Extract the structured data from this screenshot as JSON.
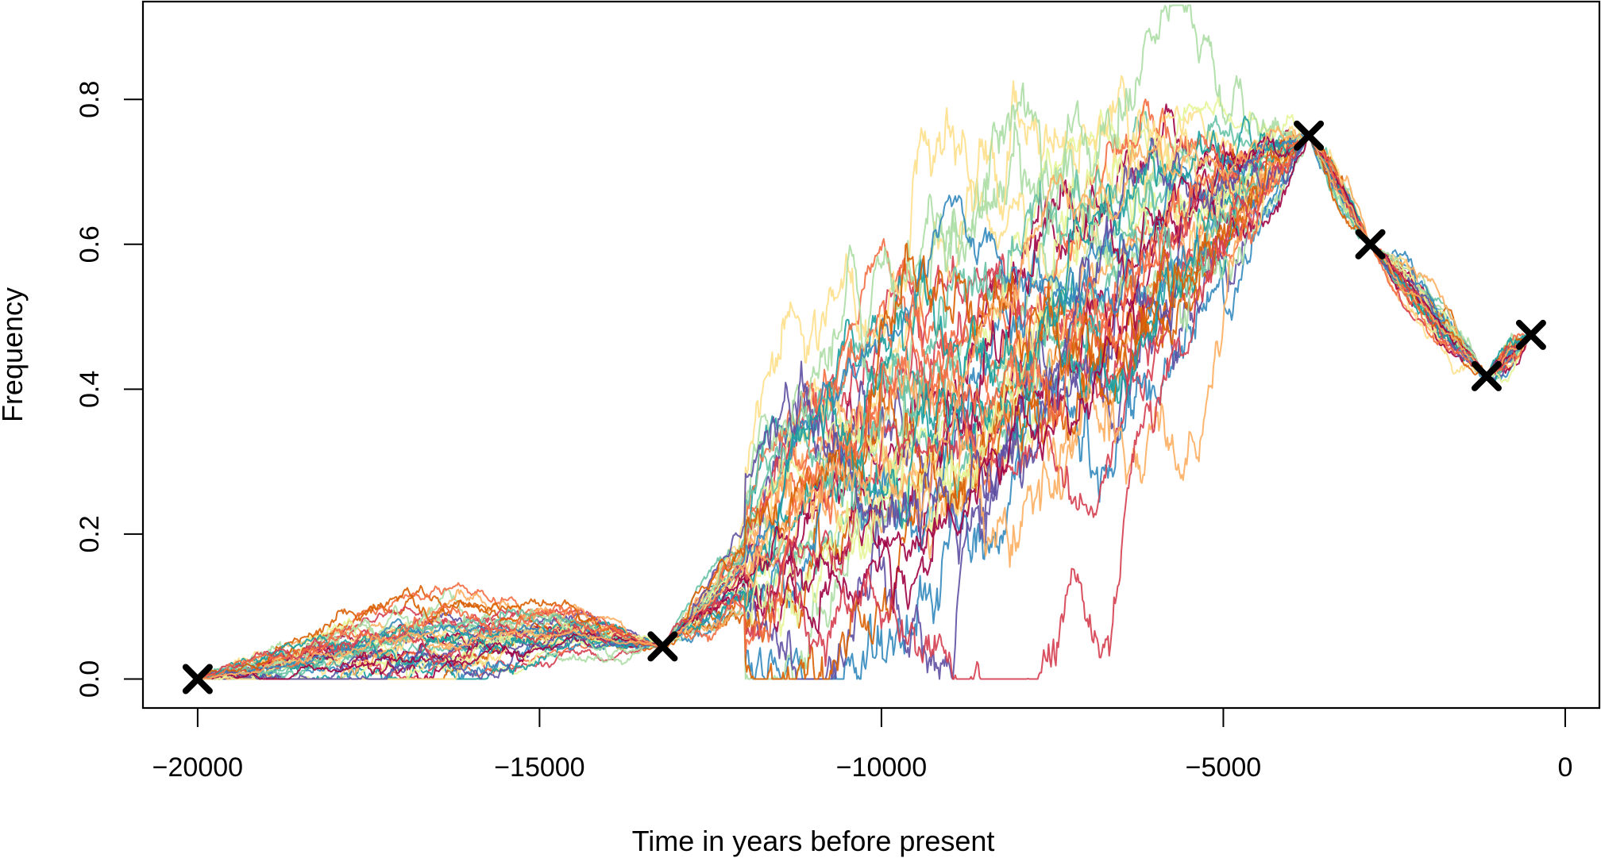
{
  "chart_data": {
    "type": "line",
    "title": "",
    "xlabel": "Time in years before present",
    "ylabel": "Frequency",
    "xlim": [
      -20800,
      500
    ],
    "ylim": [
      -0.04,
      0.935
    ],
    "x_ticks": [
      -20000,
      -15000,
      -10000,
      -5000,
      0
    ],
    "x_tick_labels": [
      "−20000",
      "−15000",
      "−10000",
      "−5000",
      "0"
    ],
    "y_ticks": [
      0.0,
      0.2,
      0.4,
      0.6,
      0.8
    ],
    "y_tick_labels": [
      "0.0",
      "0.2",
      "0.4",
      "0.6",
      "0.8"
    ],
    "grid": false,
    "legend": "none",
    "n_trajectories": 40,
    "trajectory_colors": [
      "#9E0142",
      "#D53E4F",
      "#F46D43",
      "#FDAE61",
      "#FEE08B",
      "#E6F598",
      "#ABDDA4",
      "#66C2A5",
      "#3288BD",
      "#5E4FA2",
      "#D95F02",
      "#1B9E9E"
    ],
    "observations": [
      {
        "x": -20000,
        "y": 0.0
      },
      {
        "x": -13200,
        "y": 0.045
      },
      {
        "x": -3750,
        "y": 0.75
      },
      {
        "x": -2850,
        "y": 0.6
      },
      {
        "x": -1150,
        "y": 0.418
      },
      {
        "x": -500,
        "y": 0.475
      }
    ],
    "mean_path": [
      {
        "x": -20000,
        "y": 0.0
      },
      {
        "x": -18000,
        "y": 0.035
      },
      {
        "x": -16000,
        "y": 0.055
      },
      {
        "x": -14500,
        "y": 0.065
      },
      {
        "x": -13200,
        "y": 0.045
      },
      {
        "x": -12000,
        "y": 0.15
      },
      {
        "x": -10000,
        "y": 0.33
      },
      {
        "x": -8000,
        "y": 0.45
      },
      {
        "x": -6000,
        "y": 0.58
      },
      {
        "x": -3750,
        "y": 0.75
      },
      {
        "x": -2850,
        "y": 0.6
      },
      {
        "x": -1150,
        "y": 0.418
      },
      {
        "x": -500,
        "y": 0.475
      }
    ]
  }
}
